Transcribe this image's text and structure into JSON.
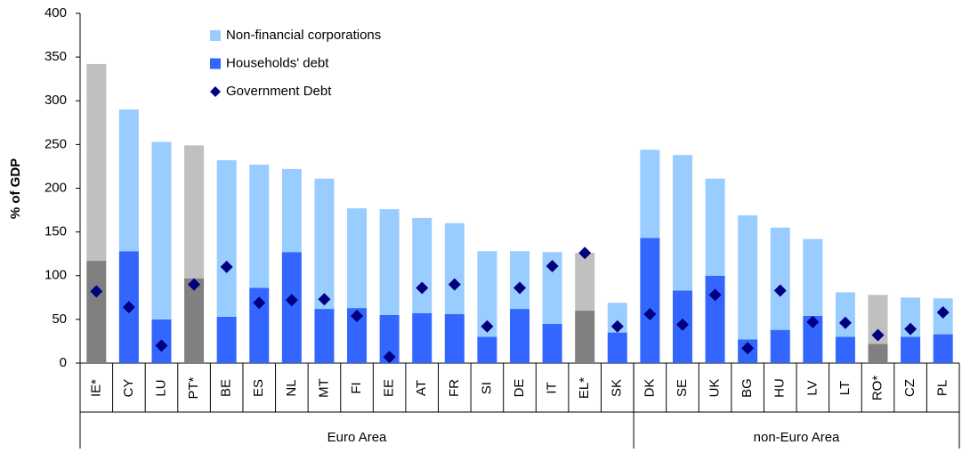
{
  "chart_data": {
    "type": "stacked_bar",
    "y_label": "% of GDP",
    "categories": [
      "IE*",
      "CY",
      "LU",
      "PT*",
      "BE",
      "ES",
      "NL",
      "MT",
      "FI",
      "EE",
      "AT",
      "FR",
      "SI",
      "DE",
      "IT",
      "EL*",
      "SK",
      "DK",
      "SE",
      "UK",
      "BG",
      "HU",
      "LV",
      "LT",
      "RO*",
      "CZ",
      "PL"
    ],
    "groups": [
      {
        "label": "Euro Area",
        "size": 17
      },
      {
        "label": "non-Euro Area",
        "size": 10
      }
    ],
    "series": [
      {
        "name": "Households' debt",
        "color": "#3366ff",
        "kind": "bar",
        "colors": [
          "#808080",
          "#3366ff",
          "#3366ff",
          "#808080",
          "#3366ff",
          "#3366ff",
          "#3366ff",
          "#3366ff",
          "#3366ff",
          "#3366ff",
          "#3366ff",
          "#3366ff",
          "#3366ff",
          "#3366ff",
          "#3366ff",
          "#808080",
          "#3366ff",
          "#3366ff",
          "#3366ff",
          "#3366ff",
          "#3366ff",
          "#3366ff",
          "#3366ff",
          "#3366ff",
          "#808080",
          "#3366ff",
          "#3366ff"
        ],
        "values": [
          117,
          128,
          50,
          97,
          53,
          86,
          127,
          62,
          63,
          55,
          57,
          56,
          30,
          62,
          45,
          60,
          35,
          143,
          83,
          100,
          27,
          38,
          54,
          30,
          22,
          30,
          33
        ]
      },
      {
        "name": "Non-financial corporations",
        "color": "#99ccff",
        "kind": "bar",
        "colors": [
          "#c0c0c0",
          "#99ccff",
          "#99ccff",
          "#c0c0c0",
          "#99ccff",
          "#99ccff",
          "#99ccff",
          "#99ccff",
          "#99ccff",
          "#99ccff",
          "#99ccff",
          "#99ccff",
          "#99ccff",
          "#99ccff",
          "#99ccff",
          "#c0c0c0",
          "#99ccff",
          "#99ccff",
          "#99ccff",
          "#99ccff",
          "#99ccff",
          "#99ccff",
          "#99ccff",
          "#99ccff",
          "#c0c0c0",
          "#99ccff",
          "#99ccff"
        ],
        "values": [
          225,
          162,
          203,
          152,
          179,
          141,
          95,
          149,
          114,
          121,
          109,
          104,
          98,
          66,
          82,
          66,
          34,
          101,
          155,
          111,
          142,
          117,
          88,
          51,
          56,
          45,
          41
        ]
      },
      {
        "name": "Government Debt",
        "color": "#000080",
        "kind": "marker",
        "values": [
          82,
          64,
          20,
          90,
          110,
          69,
          72,
          73,
          54,
          7,
          86,
          90,
          42,
          86,
          111,
          126,
          42,
          56,
          44,
          78,
          17,
          83,
          47,
          46,
          32,
          39,
          58
        ]
      }
    ],
    "legend_order": [
      1,
      0,
      2
    ],
    "ylim": [
      0,
      400
    ],
    "yticks": [
      0,
      50,
      100,
      150,
      200,
      250,
      300,
      350,
      400
    ],
    "grid": false
  }
}
